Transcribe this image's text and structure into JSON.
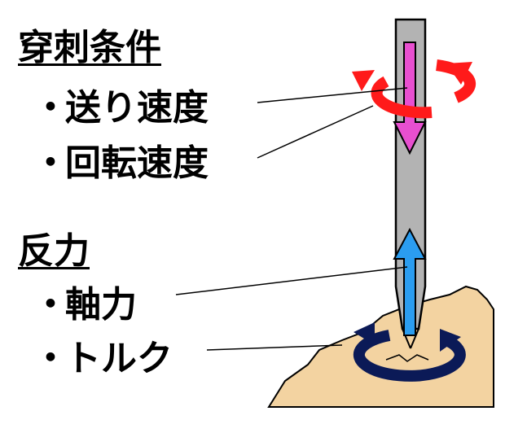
{
  "conditions": {
    "heading": "穿刺条件",
    "items": [
      "送り速度",
      "回転速度"
    ]
  },
  "reactions": {
    "heading": "反力",
    "items": [
      "軸力",
      "トルク"
    ]
  },
  "bullet": "・",
  "colors": {
    "needle_fill": "#b3b3b3",
    "feed_arrow": "#e84fd0",
    "rotation_arrow": "#ff1a1a",
    "axial_arrow": "#2b9df0",
    "torque_arrow": "#0b1a57",
    "tissue": "#f3d3a1"
  }
}
